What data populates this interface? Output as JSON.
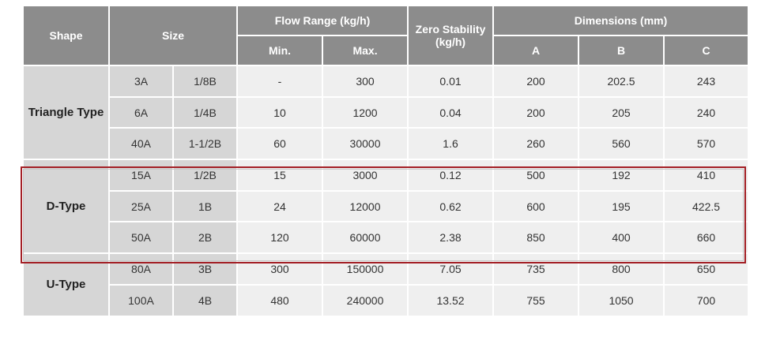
{
  "headers": {
    "shape": "Shape",
    "size": "Size",
    "flow_range": "Flow Range (kg/h)",
    "min": "Min.",
    "max": "Max.",
    "zero_stability_line1": "Zero Stability",
    "zero_stability_line2": "(kg/h)",
    "dimensions": "Dimensions (mm)",
    "a": "A",
    "b": "B",
    "c": "C"
  },
  "groups": [
    {
      "shape": "Triangle Type",
      "rows": [
        {
          "size_a": "3A",
          "size_b": "1/8B",
          "min": "-",
          "max": "300",
          "zero": "0.01",
          "a": "200",
          "b": "202.5",
          "c": "243"
        },
        {
          "size_a": "6A",
          "size_b": "1/4B",
          "min": "10",
          "max": "1200",
          "zero": "0.04",
          "a": "200",
          "b": "205",
          "c": "240"
        },
        {
          "size_a": "40A",
          "size_b": "1-1/2B",
          "min": "60",
          "max": "30000",
          "zero": "1.6",
          "a": "260",
          "b": "560",
          "c": "570"
        }
      ]
    },
    {
      "shape": "D-Type",
      "highlighted": true,
      "rows": [
        {
          "size_a": "15A",
          "size_b": "1/2B",
          "min": "15",
          "max": "3000",
          "zero": "0.12",
          "a": "500",
          "b": "192",
          "c": "410"
        },
        {
          "size_a": "25A",
          "size_b": "1B",
          "min": "24",
          "max": "12000",
          "zero": "0.62",
          "a": "600",
          "b": "195",
          "c": "422.5"
        },
        {
          "size_a": "50A",
          "size_b": "2B",
          "min": "120",
          "max": "60000",
          "zero": "2.38",
          "a": "850",
          "b": "400",
          "c": "660"
        }
      ]
    },
    {
      "shape": "U-Type",
      "rows": [
        {
          "size_a": "80A",
          "size_b": "3B",
          "min": "300",
          "max": "150000",
          "zero": "7.05",
          "a": "735",
          "b": "800",
          "c": "650"
        },
        {
          "size_a": "100A",
          "size_b": "4B",
          "min": "480",
          "max": "240000",
          "zero": "13.52",
          "a": "755",
          "b": "1050",
          "c": "700"
        }
      ]
    }
  ],
  "colors": {
    "header": "#8c8c8c",
    "shape_cell": "#d6d6d6",
    "body_cell": "#efefef",
    "highlight_border": "#a31f25"
  }
}
